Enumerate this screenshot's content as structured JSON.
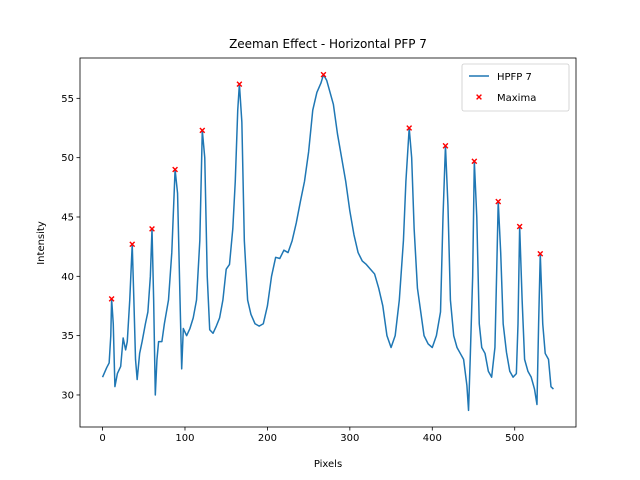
{
  "chart_data": {
    "type": "line",
    "title": "Zeeman Effect - Horizontal PFP 7",
    "xlabel": "Pixels",
    "ylabel": "Intensity",
    "xlim": [
      -27.35,
      574.35
    ],
    "ylim": [
      27.3,
      58.4
    ],
    "xticks": [
      0,
      100,
      200,
      300,
      400,
      500
    ],
    "yticks": [
      30,
      35,
      40,
      45,
      50,
      55
    ],
    "legend": "upper right",
    "series": [
      {
        "name": "HPFP 7",
        "type": "line",
        "color": "#1f77b4",
        "x": [
          0,
          5,
          8,
          10,
          11,
          13,
          15,
          18,
          22,
          25,
          28,
          30,
          33,
          36,
          38,
          40,
          42,
          45,
          48,
          52,
          55,
          58,
          60,
          62,
          64,
          66,
          68,
          72,
          75,
          80,
          84,
          88,
          91,
          94,
          96,
          98,
          102,
          106,
          110,
          114,
          118,
          121,
          124,
          127,
          130,
          134,
          138,
          142,
          146,
          150,
          154,
          158,
          161,
          164,
          166,
          169,
          172,
          176,
          180,
          185,
          190,
          195,
          200,
          205,
          210,
          215,
          220,
          225,
          230,
          235,
          240,
          245,
          250,
          255,
          260,
          265,
          268,
          272,
          276,
          280,
          285,
          290,
          295,
          300,
          305,
          310,
          315,
          320,
          325,
          330,
          335,
          340,
          345,
          350,
          355,
          360,
          365,
          368,
          372,
          375,
          378,
          382,
          386,
          390,
          395,
          400,
          405,
          410,
          413,
          416,
          419,
          422,
          426,
          430,
          434,
          438,
          442,
          444,
          446,
          449,
          451,
          454,
          457,
          460,
          464,
          468,
          472,
          476,
          478,
          480,
          483,
          486,
          490,
          494,
          498,
          502,
          504,
          506,
          509,
          512,
          516,
          520,
          524,
          527,
          529,
          531,
          534,
          537,
          541,
          544,
          547
        ],
        "values": [
          31.5,
          32.3,
          32.7,
          35,
          38.1,
          36,
          30.7,
          31.8,
          32.4,
          34.8,
          33.8,
          34.5,
          38,
          42.7,
          38,
          33,
          31.3,
          33.5,
          34.5,
          36,
          37,
          40,
          44.0,
          38,
          30,
          33,
          34.5,
          34.5,
          36,
          38,
          42,
          49.0,
          47,
          38,
          32.2,
          35.6,
          35,
          35.6,
          36.5,
          38,
          43,
          52.3,
          50,
          40,
          35.5,
          35.2,
          35.8,
          36.5,
          38,
          40.6,
          41,
          44,
          48,
          54,
          56.2,
          53,
          43,
          38,
          36.8,
          36,
          35.8,
          36,
          37.5,
          40,
          41.6,
          41.5,
          42.2,
          42,
          43,
          44.5,
          46.3,
          48,
          50.5,
          54,
          55.5,
          56.3,
          57.0,
          56.5,
          55.5,
          54.5,
          52,
          50,
          48,
          45.5,
          43.5,
          42,
          41.3,
          41,
          40.6,
          40.2,
          39,
          37.5,
          35,
          34,
          35,
          38,
          43,
          48,
          52.5,
          50,
          44,
          39,
          37,
          35,
          34.3,
          34,
          35,
          37,
          45,
          51.0,
          46,
          38,
          35,
          34,
          33.5,
          33,
          30.8,
          28.7,
          33,
          40,
          49.7,
          45,
          36,
          34,
          33.5,
          32,
          31.5,
          34,
          40,
          46.3,
          42,
          36,
          33.6,
          32,
          31.5,
          31.8,
          36,
          44.2,
          38,
          33,
          32,
          31.5,
          30.5,
          29.2,
          36,
          41.9,
          36,
          33.5,
          33,
          30.7,
          30.5
        ]
      },
      {
        "name": "Maxima",
        "type": "scatter",
        "color": "#ff0000",
        "x": [
          11,
          36,
          60,
          88,
          121,
          166,
          268,
          372,
          416,
          451,
          480,
          506,
          531
        ],
        "values": [
          38.1,
          42.7,
          44.0,
          49.0,
          52.3,
          56.2,
          57.0,
          52.5,
          51.0,
          49.7,
          46.3,
          44.2,
          41.9
        ]
      }
    ]
  }
}
